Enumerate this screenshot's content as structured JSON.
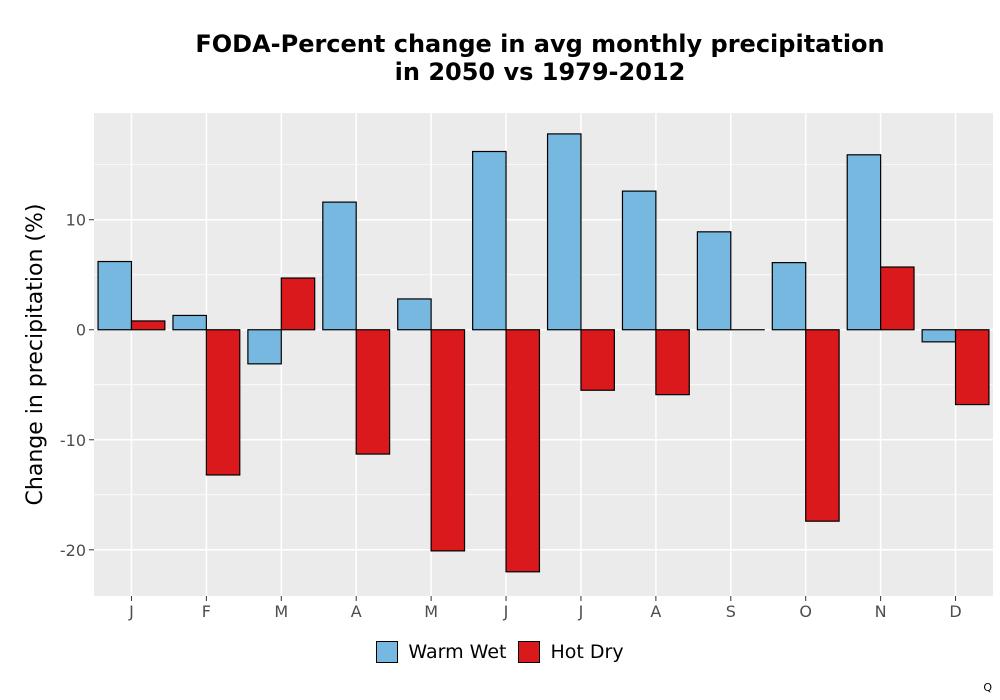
{
  "chart_data": {
    "type": "bar",
    "title_lines": [
      "FODA-Percent change in avg monthly precipitation",
      "in 2050 vs 1979-2012"
    ],
    "xlabel": "",
    "ylabel": "Change in precipitation (%)",
    "categories": [
      "J",
      "F",
      "M",
      "A",
      "M",
      "J",
      "J",
      "A",
      "S",
      "O",
      "N",
      "D"
    ],
    "series": [
      {
        "name": "Warm Wet",
        "color": "#77b8e1",
        "values": [
          6.2,
          1.3,
          -3.1,
          11.6,
          2.8,
          16.2,
          17.8,
          12.6,
          8.9,
          6.1,
          15.9,
          -1.1
        ]
      },
      {
        "name": "Hot Dry",
        "color": "#d9191c",
        "values": [
          0.8,
          -13.2,
          4.7,
          -11.3,
          -20.1,
          -22.0,
          -5.5,
          -5.9,
          0.0,
          -17.4,
          5.7,
          -6.8
        ]
      }
    ],
    "ylim": [
      -24.2,
      19.7
    ],
    "yticks": [
      -20,
      -10,
      0,
      10
    ],
    "ytick_labels": [
      "-20",
      "-10",
      "0",
      "10"
    ],
    "grid": true,
    "panel_background": "#ebebeb",
    "legend_position": "bottom"
  },
  "corner_mark": "Q"
}
